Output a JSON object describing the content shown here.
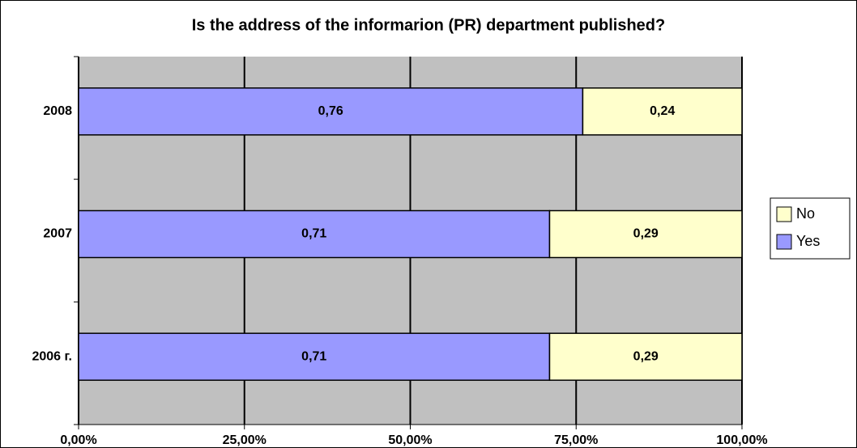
{
  "chart_data": {
    "type": "stacked_barh",
    "title": "Is the address of the informarion (PR) department published?",
    "categories": [
      "2006 г.",
      "2007",
      "2008"
    ],
    "series": [
      {
        "name": "Yes",
        "color": "#9999ff",
        "values": [
          0.71,
          0.71,
          0.76
        ],
        "value_labels": [
          "0,71",
          "0,71",
          "0,76"
        ]
      },
      {
        "name": "No",
        "color": "#ffffcc",
        "values": [
          0.29,
          0.29,
          0.24
        ],
        "value_labels": [
          "0,29",
          "0,29",
          "0,24"
        ]
      }
    ],
    "xlim": [
      0,
      1
    ],
    "xticks": [
      {
        "value": 0,
        "label": "0,00%"
      },
      {
        "value": 0.25,
        "label": "25,00%"
      },
      {
        "value": 0.5,
        "label": "50,00%"
      },
      {
        "value": 0.75,
        "label": "75,00%"
      },
      {
        "value": 1,
        "label": "100,00%"
      }
    ],
    "grid": true,
    "legend": "right"
  }
}
